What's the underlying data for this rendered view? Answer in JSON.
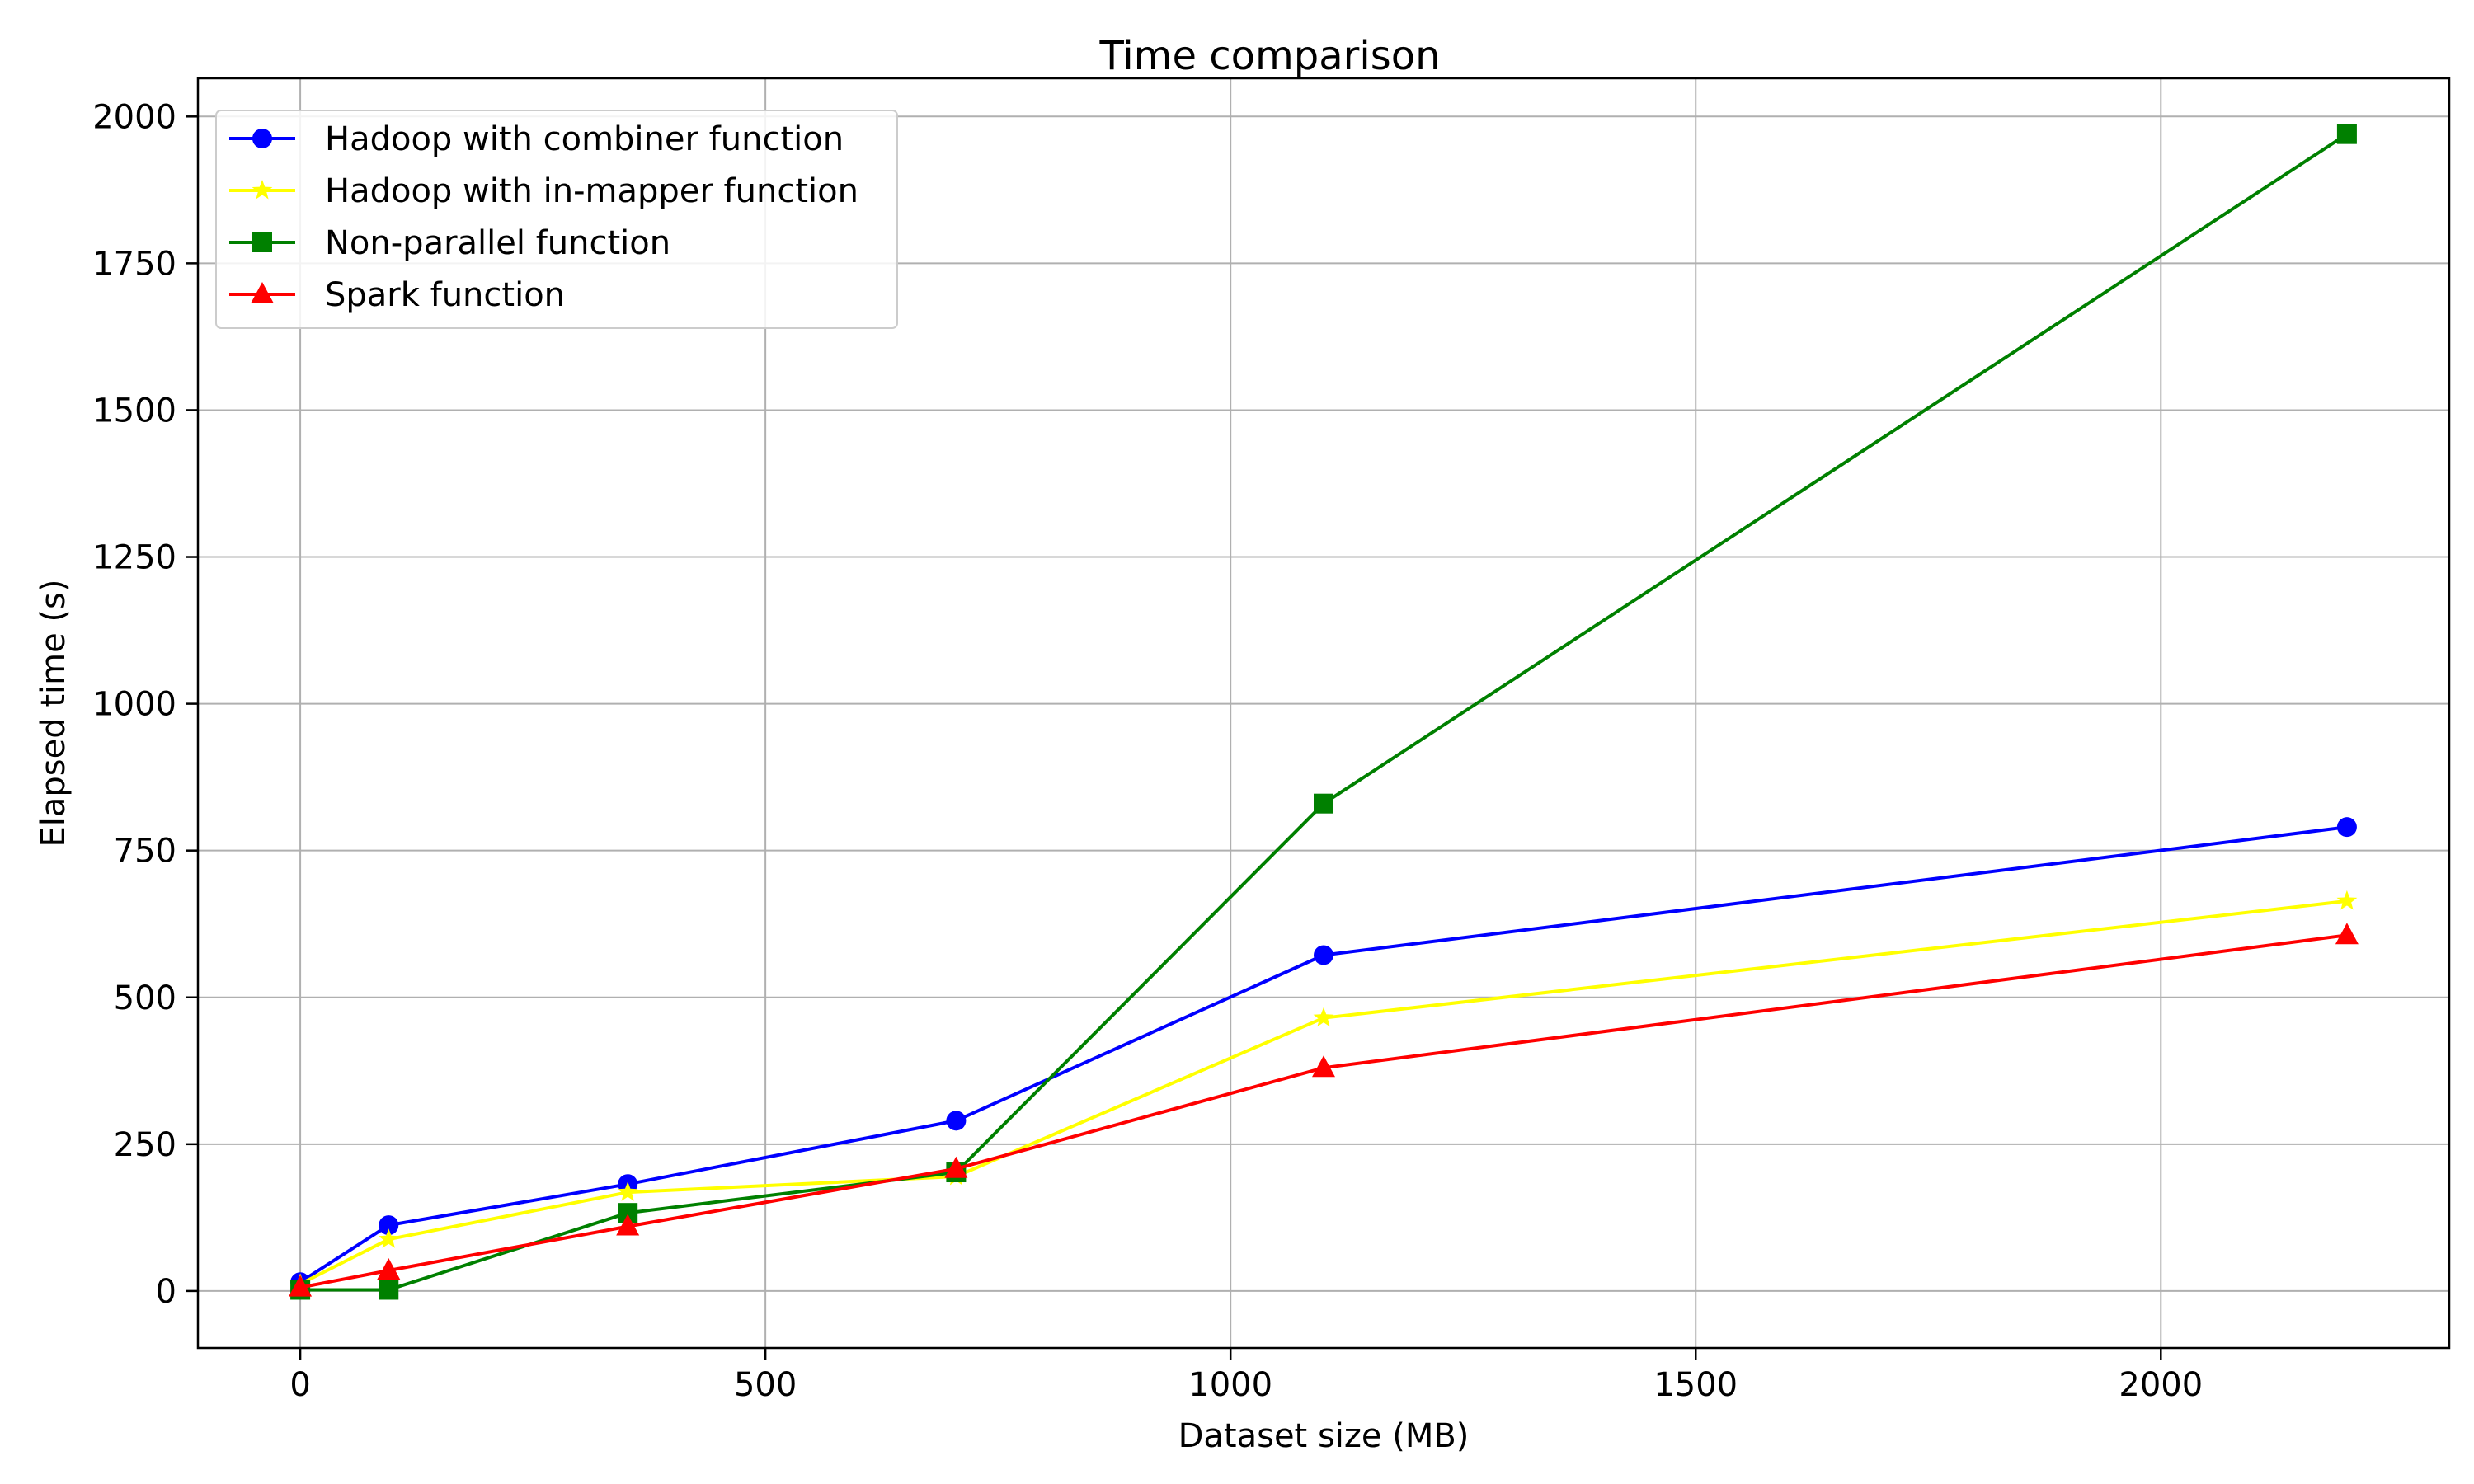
{
  "chart_data": {
    "type": "line",
    "title": "Time comparison",
    "xlabel": "Dataset size (MB)",
    "ylabel": "Elapsed time (s)",
    "xlim": [
      -110,
      2310
    ],
    "ylim": [
      -97,
      2065
    ],
    "xticks": [
      0,
      500,
      1000,
      1500,
      2000
    ],
    "yticks": [
      0,
      250,
      500,
      750,
      1000,
      1250,
      1500,
      1750,
      2000
    ],
    "grid": true,
    "legend_position": "top-left",
    "series": [
      {
        "name": "Hadoop with combiner function",
        "color": "#0000ff",
        "marker": "circle",
        "points": [
          [
            0,
            15
          ],
          [
            95,
            112
          ],
          [
            352,
            182
          ],
          [
            705,
            290
          ],
          [
            1100,
            572
          ],
          [
            2200,
            790
          ]
        ]
      },
      {
        "name": "Hadoop with in-mapper function",
        "color": "#ffff00",
        "marker": "star",
        "points": [
          [
            0,
            12
          ],
          [
            95,
            88
          ],
          [
            352,
            168
          ],
          [
            705,
            195
          ],
          [
            1100,
            465
          ],
          [
            2200,
            664
          ]
        ]
      },
      {
        "name": "Non-parallel function",
        "color": "#008000",
        "marker": "square",
        "points": [
          [
            0,
            2
          ],
          [
            95,
            2
          ],
          [
            352,
            133
          ],
          [
            705,
            202
          ],
          [
            1100,
            830
          ],
          [
            2200,
            1970
          ]
        ]
      },
      {
        "name": "Spark function",
        "color": "#ff0000",
        "marker": "triangle",
        "points": [
          [
            0,
            6
          ],
          [
            95,
            35
          ],
          [
            352,
            110
          ],
          [
            705,
            208
          ],
          [
            1100,
            380
          ],
          [
            2200,
            606
          ]
        ]
      }
    ]
  }
}
